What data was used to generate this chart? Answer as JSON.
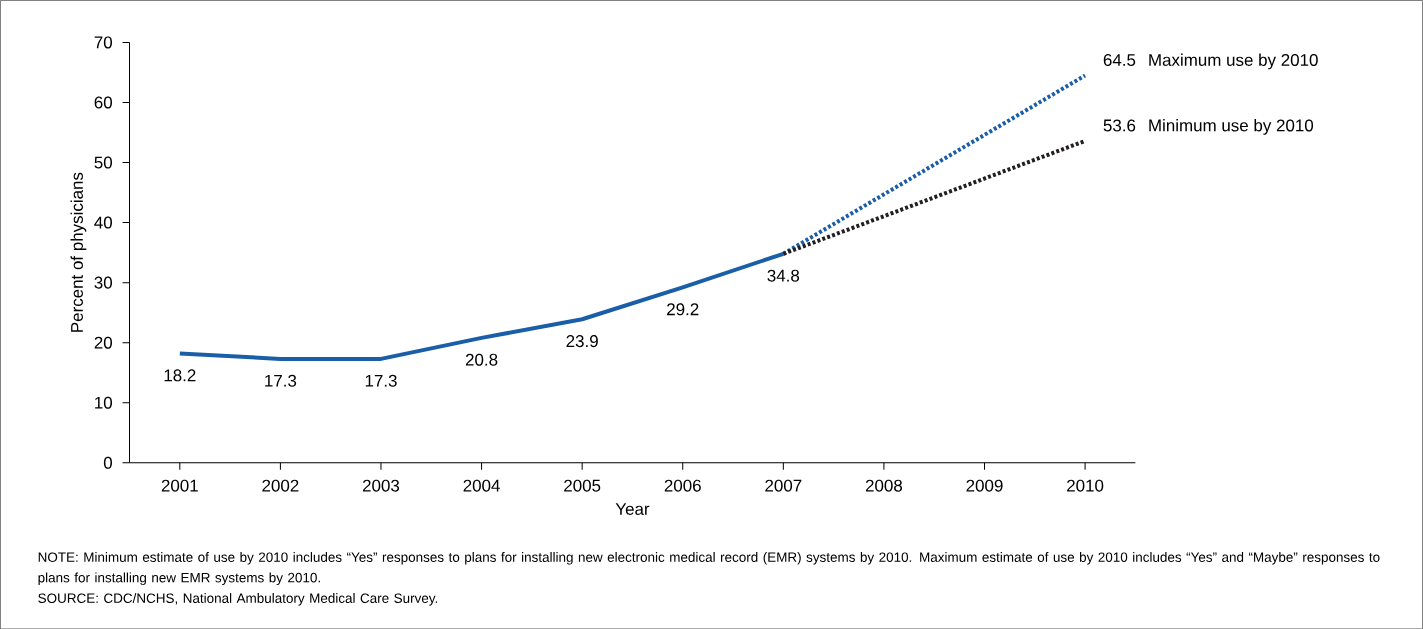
{
  "chart_data": {
    "type": "line",
    "xlabel": "Year",
    "ylabel": "Percent of physicians",
    "xlim": [
      2000.5,
      2010.5
    ],
    "xticks": [
      2001,
      2002,
      2003,
      2004,
      2005,
      2006,
      2007,
      2008,
      2009,
      2010
    ],
    "ylim": [
      0,
      70
    ],
    "yticks": [
      0,
      10,
      20,
      30,
      40,
      50,
      60,
      70
    ],
    "series": [
      {
        "color": "#1a5ea8",
        "line_style": "solid",
        "x": [
          2001,
          2002,
          2003,
          2004,
          2005,
          2006,
          2007
        ],
        "values": [
          18.2,
          17.3,
          17.3,
          20.8,
          23.9,
          29.2,
          34.8
        ],
        "value_labels": [
          "18.2",
          "17.3",
          "17.3",
          "20.8",
          "23.9",
          "29.2",
          "34.8"
        ]
      },
      {
        "name": "Maximum use by 2010",
        "color": "#1a5ea8",
        "line_style": "dotted",
        "x": [
          2007,
          2010
        ],
        "values": [
          34.8,
          64.5
        ],
        "value_labels": [
          null,
          "64.5"
        ]
      },
      {
        "name": "Minimum use by 2010",
        "color": "#231f20",
        "line_style": "dotted",
        "x": [
          2007,
          2010
        ],
        "values": [
          34.8,
          53.6
        ],
        "value_labels": [
          null,
          "53.6"
        ]
      }
    ],
    "annotations": [
      "NOTE: Minimum estimate of use by 2010 includes “Yes” responses to plans for installing new electronic medical record (EMR) systems by 2010. Maximum estimate of use by 2010 includes “Yes” and “Maybe” responses to plans for installing new EMR systems by 2010.",
      "SOURCE: CDC/NCHS, National Ambulatory Medical Care Survey."
    ]
  }
}
